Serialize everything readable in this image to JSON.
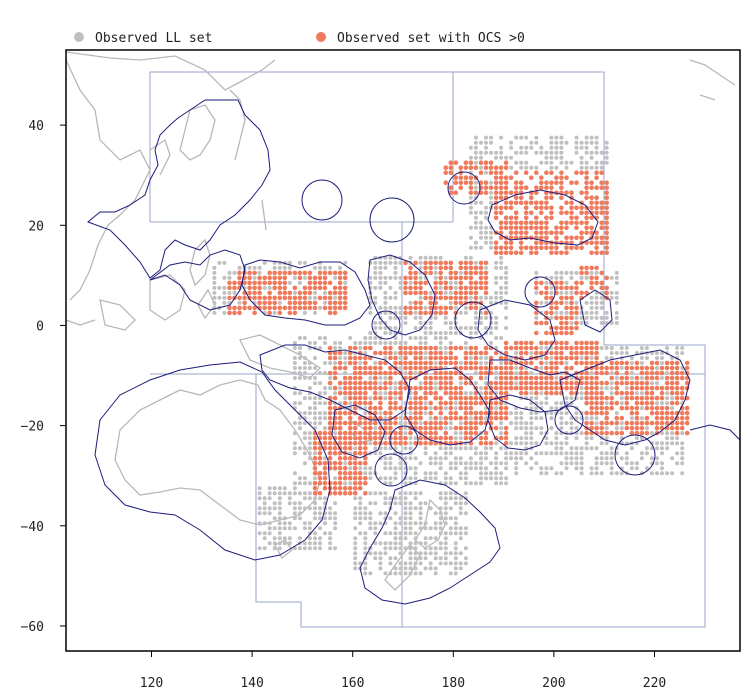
{
  "legend": {
    "items": [
      {
        "label": "Observed LL set",
        "color": "#c0c0c0"
      },
      {
        "label": "Observed set with OCS >0",
        "color": "#f07a5c"
      }
    ]
  },
  "colors": {
    "observed": "#c0c0c0",
    "ocs": "#f07a5c",
    "coast": "#b8b8b8",
    "eez": "#1c1c7c",
    "region": "#9aa6c8",
    "frame": "#000000"
  },
  "chart_data": {
    "type": "scatter",
    "title": "",
    "xlabel": "",
    "ylabel": "",
    "xlim": [
      103,
      237
    ],
    "ylim": [
      -65,
      55
    ],
    "x_ticks": [
      120,
      140,
      160,
      180,
      200,
      220
    ],
    "y_ticks": [
      40,
      20,
      0,
      -20,
      -40,
      -60
    ],
    "x_tick_labels": [
      "120",
      "140",
      "160",
      "180",
      "200",
      "220"
    ],
    "y_tick_labels": [
      "40",
      "20",
      "0",
      "−20",
      "−40",
      "−60"
    ],
    "grid": false,
    "legend_position": "top-left",
    "series": [
      {
        "name": "Observed LL set",
        "color": "#c0c0c0",
        "blocks": [
          {
            "lon": [
              183,
              210
            ],
            "lat": [
              15,
              37
            ],
            "step": 1
          },
          {
            "lon": [
              132,
              158
            ],
            "lat": [
              2,
              12
            ],
            "step": 1
          },
          {
            "lon": [
              163,
              190
            ],
            "lat": [
              -2,
              13
            ],
            "step": 1
          },
          {
            "lon": [
              148,
              190
            ],
            "lat": [
              -32,
              -3
            ],
            "step": 1
          },
          {
            "lon": [
              190,
              225
            ],
            "lat": [
              -30,
              -5
            ],
            "step": 1
          },
          {
            "lon": [
              196,
              212
            ],
            "lat": [
              0,
              10
            ],
            "step": 1
          },
          {
            "lon": [
              160,
              182
            ],
            "lat": [
              -50,
              -34
            ],
            "step": 1
          },
          {
            "lon": [
              141,
              156
            ],
            "lat": [
              -45,
              -33
            ],
            "step": 1
          }
        ]
      },
      {
        "name": "Observed set with OCS >0",
        "color": "#f07a5c",
        "blocks": [
          {
            "lon": [
              188,
              210
            ],
            "lat": [
              14,
              30
            ],
            "step": 1
          },
          {
            "lon": [
              178,
              190
            ],
            "lat": [
              26,
              32
            ],
            "step": 1
          },
          {
            "lon": [
              135,
              158
            ],
            "lat": [
              2,
              10
            ],
            "step": 1
          },
          {
            "lon": [
              170,
              186
            ],
            "lat": [
              2,
              12
            ],
            "step": 1
          },
          {
            "lon": [
              155,
              190
            ],
            "lat": [
              -24,
              -5
            ],
            "step": 1
          },
          {
            "lon": [
              190,
              208
            ],
            "lat": [
              -14,
              -4
            ],
            "step": 1
          },
          {
            "lon": [
              206,
              226
            ],
            "lat": [
              -22,
              -8
            ],
            "step": 1
          },
          {
            "lon": [
              152,
              162
            ],
            "lat": [
              -34,
              -22
            ],
            "step": 1
          },
          {
            "lon": [
              196,
              204
            ],
            "lat": [
              -2,
              8
            ],
            "step": 1
          },
          {
            "lon": [
              205,
              210
            ],
            "lat": [
              5,
              11
            ],
            "step": 1
          }
        ]
      }
    ]
  }
}
